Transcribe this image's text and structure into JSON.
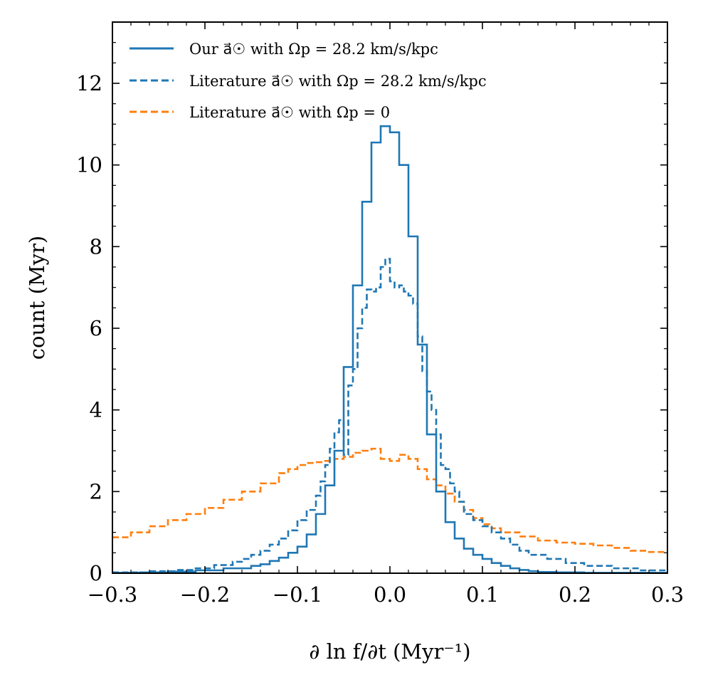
{
  "chart_data": {
    "type": "histogram",
    "xlabel": "∂ ln f/∂t (Myr⁻¹)",
    "ylabel": "count (Myr)",
    "xlim": [
      -0.3,
      0.3
    ],
    "ylim": [
      0,
      13.5
    ],
    "xticks": [
      -0.3,
      -0.2,
      -0.1,
      0.0,
      0.1,
      0.2,
      0.3
    ],
    "xtick_labels": [
      "−0.3",
      "−0.2",
      "−0.1",
      "0.0",
      "0.1",
      "0.2",
      "0.3"
    ],
    "yticks": [
      0,
      2,
      4,
      6,
      8,
      10,
      12
    ],
    "ytick_labels": [
      "0",
      "2",
      "4",
      "6",
      "8",
      "10",
      "12"
    ],
    "legend_position": "top-left",
    "series": [
      {
        "name": "Our a⃗☉ with Ωp = 28.2 km/s/kpc",
        "color": "#1f77b4",
        "linestyle": "solid",
        "bin_edges": [
          -0.3,
          -0.27,
          -0.24,
          -0.21,
          -0.18,
          -0.15,
          -0.14,
          -0.13,
          -0.12,
          -0.11,
          -0.1,
          -0.09,
          -0.08,
          -0.07,
          -0.06,
          -0.05,
          -0.04,
          -0.03,
          -0.02,
          -0.01,
          0.0,
          0.01,
          0.02,
          0.03,
          0.04,
          0.05,
          0.06,
          0.07,
          0.08,
          0.09,
          0.1,
          0.11,
          0.12,
          0.13,
          0.14,
          0.15,
          0.16,
          0.18,
          0.21,
          0.24,
          0.27,
          0.3
        ],
        "values": [
          0.01,
          0.02,
          0.04,
          0.07,
          0.12,
          0.18,
          0.22,
          0.3,
          0.38,
          0.5,
          0.65,
          0.95,
          1.45,
          2.15,
          3.0,
          5.05,
          7.05,
          9.1,
          10.55,
          10.95,
          10.8,
          10.0,
          8.25,
          5.6,
          3.4,
          2.0,
          1.25,
          0.85,
          0.6,
          0.45,
          0.35,
          0.25,
          0.18,
          0.12,
          0.08,
          0.05,
          0.03,
          0.02,
          0.01,
          0.01,
          0.01
        ]
      },
      {
        "name": "Literature a⃗☉ with Ωp = 28.2 km/s/kpc",
        "color": "#1f77b4",
        "linestyle": "dashed",
        "bin_edges": [
          -0.3,
          -0.26,
          -0.23,
          -0.21,
          -0.19,
          -0.17,
          -0.16,
          -0.15,
          -0.14,
          -0.13,
          -0.12,
          -0.11,
          -0.1,
          -0.09,
          -0.08,
          -0.075,
          -0.07,
          -0.065,
          -0.06,
          -0.055,
          -0.05,
          -0.045,
          -0.04,
          -0.035,
          -0.03,
          -0.025,
          -0.02,
          -0.015,
          -0.01,
          -0.005,
          0.0,
          0.005,
          0.01,
          0.015,
          0.02,
          0.025,
          0.03,
          0.035,
          0.04,
          0.045,
          0.05,
          0.055,
          0.06,
          0.065,
          0.07,
          0.075,
          0.08,
          0.09,
          0.1,
          0.11,
          0.12,
          0.13,
          0.14,
          0.15,
          0.17,
          0.19,
          0.21,
          0.24,
          0.27,
          0.3
        ],
        "values": [
          0.02,
          0.05,
          0.08,
          0.12,
          0.2,
          0.28,
          0.35,
          0.45,
          0.55,
          0.7,
          0.85,
          1.05,
          1.3,
          1.55,
          1.9,
          2.25,
          2.65,
          3.05,
          3.45,
          3.75,
          2.9,
          4.6,
          5.0,
          6.0,
          6.5,
          6.95,
          6.9,
          7.0,
          7.5,
          7.7,
          7.15,
          7.0,
          7.05,
          6.9,
          6.8,
          6.6,
          5.8,
          4.95,
          4.45,
          4.0,
          3.4,
          2.65,
          2.55,
          2.2,
          2.0,
          1.75,
          1.45,
          1.3,
          1.15,
          1.0,
          0.85,
          0.7,
          0.55,
          0.45,
          0.35,
          0.25,
          0.18,
          0.12,
          0.07
        ]
      },
      {
        "name": "Literature a⃗☉ with Ωp = 0",
        "color": "#ff7f0e",
        "linestyle": "dashed",
        "bin_edges": [
          -0.3,
          -0.28,
          -0.26,
          -0.24,
          -0.22,
          -0.2,
          -0.18,
          -0.16,
          -0.14,
          -0.12,
          -0.11,
          -0.1,
          -0.09,
          -0.08,
          -0.07,
          -0.06,
          -0.05,
          -0.04,
          -0.03,
          -0.02,
          -0.01,
          0.0,
          0.01,
          0.02,
          0.03,
          0.04,
          0.05,
          0.06,
          0.07,
          0.08,
          0.09,
          0.1,
          0.11,
          0.12,
          0.14,
          0.16,
          0.18,
          0.2,
          0.22,
          0.24,
          0.26,
          0.28,
          0.3
        ],
        "values": [
          0.88,
          1.0,
          1.15,
          1.3,
          1.45,
          1.6,
          1.8,
          2.0,
          2.2,
          2.45,
          2.55,
          2.65,
          2.7,
          2.72,
          2.75,
          2.8,
          2.85,
          2.95,
          3.0,
          3.05,
          2.8,
          2.75,
          2.9,
          2.8,
          2.55,
          2.3,
          2.15,
          1.95,
          1.75,
          1.55,
          1.35,
          1.2,
          1.1,
          1.0,
          0.9,
          0.8,
          0.75,
          0.72,
          0.68,
          0.62,
          0.55,
          0.52
        ]
      }
    ]
  }
}
